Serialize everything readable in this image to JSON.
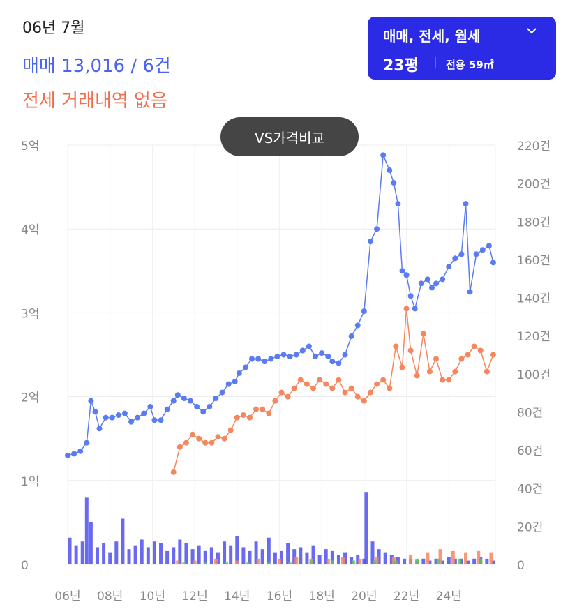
{
  "header": {
    "date": "06년 7월",
    "sale": "매매 13,016 / 6건",
    "jeonse": "전세 거래내역 없음"
  },
  "filter": {
    "types": "매매, 전세, 월세",
    "size": "23평",
    "separator": "|",
    "area": "전용 59㎡",
    "icon": "chevron-down-icon"
  },
  "compare_button": "VS가격비교",
  "colors": {
    "sale": "#5b7cf0",
    "jeonse": "#f5875f",
    "volume_sale": "#5050ee",
    "volume_jeonse": "#f5875f",
    "volume_monthly": "#5cc35c",
    "accent": "#2b2be6"
  },
  "chart_data": {
    "type": "line",
    "x_ticks": [
      "06년",
      "08년",
      "10년",
      "12년",
      "14년",
      "16년",
      "18년",
      "20년",
      "22년",
      "24년"
    ],
    "x_tick_years": [
      2006,
      2008,
      2010,
      2012,
      2014,
      2016,
      2018,
      2020,
      2022,
      2024
    ],
    "xlim": [
      2006.0,
      2026.2
    ],
    "y_left_ticks": [
      "0",
      "1억",
      "2억",
      "3억",
      "4억",
      "5억"
    ],
    "y_left_values": [
      0,
      1,
      2,
      3,
      4,
      5
    ],
    "y_left_unit": "억",
    "ylim_left": [
      0,
      5
    ],
    "y_right_ticks": [
      "0",
      "20건",
      "40건",
      "60건",
      "80건",
      "100건",
      "120건",
      "140건",
      "160건",
      "180건",
      "200건",
      "220건"
    ],
    "y_right_values": [
      0,
      20,
      40,
      60,
      80,
      100,
      120,
      140,
      160,
      180,
      200,
      220
    ],
    "ylim_right": [
      0,
      220
    ],
    "grid": true,
    "series": [
      {
        "name": "매매",
        "color": "#5b7cf0",
        "axis": "left",
        "x": [
          2006.0,
          2006.3,
          2006.6,
          2006.9,
          2007.1,
          2007.3,
          2007.5,
          2007.8,
          2008.1,
          2008.4,
          2008.7,
          2009.0,
          2009.3,
          2009.6,
          2009.9,
          2010.1,
          2010.4,
          2010.7,
          2011.0,
          2011.2,
          2011.5,
          2011.8,
          2012.1,
          2012.4,
          2012.7,
          2013.0,
          2013.3,
          2013.6,
          2013.9,
          2014.1,
          2014.4,
          2014.7,
          2015.0,
          2015.3,
          2015.6,
          2015.9,
          2016.2,
          2016.5,
          2016.8,
          2017.1,
          2017.4,
          2017.7,
          2018.0,
          2018.3,
          2018.5,
          2018.8,
          2019.1,
          2019.4,
          2019.7,
          2020.0,
          2020.3,
          2020.6,
          2020.9,
          2021.2,
          2021.4,
          2021.6,
          2021.8,
          2022.0,
          2022.2,
          2022.4,
          2022.7,
          2023.0,
          2023.2,
          2023.4,
          2023.7,
          2024.0,
          2024.3,
          2024.6,
          2024.8,
          2025.0,
          2025.3,
          2025.6,
          2025.9,
          2026.1
        ],
        "y": [
          1.3,
          1.32,
          1.35,
          1.45,
          1.95,
          1.82,
          1.62,
          1.75,
          1.75,
          1.78,
          1.8,
          1.7,
          1.75,
          1.8,
          1.88,
          1.72,
          1.72,
          1.85,
          1.95,
          2.02,
          1.98,
          1.95,
          1.88,
          1.82,
          1.88,
          1.98,
          2.05,
          2.15,
          2.18,
          2.28,
          2.35,
          2.45,
          2.45,
          2.42,
          2.45,
          2.48,
          2.5,
          2.48,
          2.5,
          2.55,
          2.6,
          2.48,
          2.52,
          2.48,
          2.42,
          2.4,
          2.5,
          2.72,
          2.85,
          3.02,
          3.85,
          4.0,
          4.88,
          4.7,
          4.55,
          4.3,
          3.5,
          3.45,
          3.2,
          3.05,
          3.35,
          3.4,
          3.3,
          3.35,
          3.4,
          3.55,
          3.65,
          3.7,
          4.3,
          3.25,
          3.7,
          3.75,
          3.8,
          3.6
        ]
      },
      {
        "name": "전세",
        "color": "#f5875f",
        "axis": "left",
        "x": [
          2011.0,
          2011.3,
          2011.6,
          2011.9,
          2012.2,
          2012.5,
          2012.8,
          2013.1,
          2013.4,
          2013.7,
          2014.0,
          2014.3,
          2014.6,
          2014.9,
          2015.2,
          2015.5,
          2015.8,
          2016.1,
          2016.4,
          2016.7,
          2017.0,
          2017.3,
          2017.6,
          2017.9,
          2018.2,
          2018.5,
          2018.8,
          2019.1,
          2019.4,
          2019.7,
          2020.0,
          2020.3,
          2020.6,
          2020.9,
          2021.2,
          2021.5,
          2021.8,
          2022.0,
          2022.2,
          2022.5,
          2022.8,
          2023.1,
          2023.4,
          2023.7,
          2024.0,
          2024.3,
          2024.6,
          2024.9,
          2025.2,
          2025.5,
          2025.8,
          2026.1
        ],
        "y": [
          1.1,
          1.4,
          1.45,
          1.55,
          1.5,
          1.45,
          1.45,
          1.52,
          1.5,
          1.6,
          1.75,
          1.78,
          1.75,
          1.85,
          1.85,
          1.8,
          1.95,
          2.05,
          2.0,
          2.1,
          2.2,
          2.15,
          2.1,
          2.2,
          2.15,
          2.1,
          2.2,
          2.05,
          2.1,
          2.0,
          1.95,
          2.05,
          2.15,
          2.2,
          2.1,
          2.6,
          2.35,
          3.05,
          2.55,
          2.25,
          2.75,
          2.3,
          2.45,
          2.2,
          2.2,
          2.3,
          2.45,
          2.5,
          2.6,
          2.55,
          2.3,
          2.5
        ]
      }
    ],
    "volume": [
      {
        "name": "매매 거래량",
        "color": "#5050ee",
        "axis": "right",
        "x": [
          2006.1,
          2006.4,
          2006.7,
          2006.9,
          2007.1,
          2007.4,
          2007.7,
          2008.0,
          2008.3,
          2008.6,
          2008.9,
          2009.2,
          2009.5,
          2009.8,
          2010.1,
          2010.4,
          2010.7,
          2011.0,
          2011.3,
          2011.6,
          2011.9,
          2012.2,
          2012.5,
          2012.8,
          2013.1,
          2013.4,
          2013.7,
          2014.0,
          2014.3,
          2014.6,
          2014.9,
          2015.2,
          2015.5,
          2015.8,
          2016.1,
          2016.4,
          2016.7,
          2017.0,
          2017.3,
          2017.6,
          2017.9,
          2018.2,
          2018.5,
          2018.8,
          2019.1,
          2019.4,
          2019.7,
          2020.0,
          2020.1,
          2020.4,
          2020.7,
          2021.0,
          2021.3,
          2021.6,
          2021.9,
          2022.2,
          2022.5,
          2022.8,
          2023.1,
          2023.4,
          2023.7,
          2024.0,
          2024.3,
          2024.6,
          2024.9,
          2025.2,
          2025.5,
          2025.8,
          2026.1
        ],
        "y": [
          14,
          10,
          12,
          35,
          22,
          9,
          11,
          6,
          12,
          24,
          8,
          10,
          13,
          9,
          12,
          11,
          7,
          9,
          13,
          11,
          8,
          10,
          7,
          9,
          6,
          12,
          10,
          15,
          9,
          7,
          12,
          8,
          14,
          6,
          7,
          11,
          8,
          9,
          6,
          10,
          5,
          8,
          7,
          5,
          6,
          4,
          5,
          3,
          38,
          12,
          8,
          6,
          5,
          4,
          3,
          3,
          2,
          3,
          2,
          3,
          2,
          4,
          3,
          3,
          2,
          3,
          4,
          3,
          2
        ]
      },
      {
        "name": "전세 거래량",
        "color": "#f5875f",
        "axis": "right",
        "x": [
          2011.2,
          2012.0,
          2013.0,
          2014.0,
          2015.0,
          2016.0,
          2016.8,
          2017.5,
          2018.3,
          2019.0,
          2019.8,
          2020.6,
          2021.4,
          2022.2,
          2023.0,
          2023.6,
          2024.2,
          2024.8,
          2025.4,
          2026.0
        ],
        "y": [
          2,
          2,
          3,
          2,
          3,
          3,
          4,
          3,
          3,
          4,
          3,
          4,
          4,
          5,
          6,
          8,
          7,
          6,
          7,
          6
        ]
      },
      {
        "name": "월세 거래량",
        "color": "#5cc35c",
        "axis": "right",
        "x": [
          2011.5,
          2012.5,
          2013.5,
          2014.5,
          2015.5,
          2016.5,
          2017.5,
          2018.5,
          2019.5,
          2020.5,
          2021.5,
          2022.5,
          2023.5,
          2024.5,
          2025.5
        ],
        "y": [
          1,
          1,
          1,
          1,
          1,
          1,
          2,
          2,
          2,
          2,
          2,
          3,
          3,
          3,
          3
        ]
      }
    ]
  }
}
